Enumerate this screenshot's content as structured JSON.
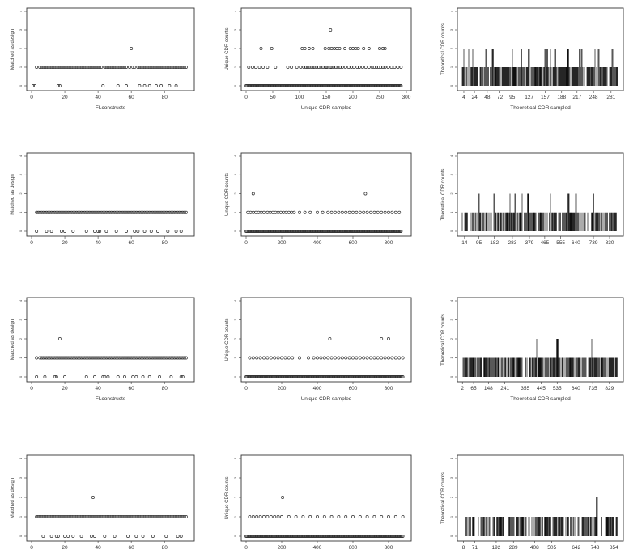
{
  "chart_data": [
    {
      "type": "scatter",
      "row": 0,
      "col": 0,
      "xlabel": "FLconstructs",
      "ylabel": "Matched as design",
      "xlim": [
        0,
        95
      ],
      "ylim": [
        0,
        4
      ],
      "xticks": [
        0,
        20,
        40,
        60,
        80
      ],
      "yticks": [
        0,
        1,
        2,
        3,
        4
      ],
      "series": [
        {
          "y": 1,
          "x": [
            3,
            5,
            6,
            7,
            8,
            9,
            10,
            11,
            12,
            13,
            14,
            15,
            16,
            17,
            18,
            19,
            20,
            21,
            22,
            23,
            24,
            25,
            26,
            27,
            28,
            29,
            30,
            31,
            32,
            33,
            34,
            35,
            36,
            37,
            38,
            39,
            40,
            41,
            42,
            44,
            45,
            46,
            47,
            48,
            49,
            50,
            51,
            52,
            53,
            54,
            55,
            56,
            57,
            59,
            61,
            62,
            64,
            65,
            66,
            67,
            68,
            69,
            70,
            71,
            72,
            73,
            74,
            75,
            76,
            77,
            78,
            79,
            80,
            81,
            82,
            83,
            84,
            85,
            86,
            87,
            88,
            89,
            90,
            91,
            92,
            93
          ]
        },
        {
          "y": 0,
          "x": [
            1,
            2,
            16,
            17,
            43,
            52,
            57,
            65,
            68,
            71,
            75,
            78,
            83,
            87
          ]
        },
        {
          "y": 2,
          "x": [
            60
          ]
        }
      ]
    },
    {
      "type": "scatter",
      "row": 0,
      "col": 1,
      "xlabel": "Unique CDR sampled",
      "ylabel": "Unique CDR counts",
      "xlim": [
        0,
        300
      ],
      "ylim": [
        0,
        4
      ],
      "xticks": [
        0,
        50,
        100,
        150,
        200,
        250,
        300
      ],
      "yticks": [
        0,
        1,
        2,
        3,
        4
      ],
      "series": [
        {
          "y": 0,
          "x_range": [
            0,
            290
          ],
          "dense": true
        },
        {
          "y": 1,
          "x": [
            5,
            12,
            18,
            25,
            32,
            40,
            55,
            78,
            85,
            95,
            102,
            108,
            112,
            115,
            118,
            122,
            125,
            128,
            132,
            136,
            140,
            144,
            148,
            150,
            152,
            158,
            160,
            164,
            168,
            172,
            176,
            180,
            186,
            192,
            197,
            202,
            208,
            212,
            218,
            224,
            230,
            236,
            240,
            244,
            248,
            252,
            256,
            260,
            266,
            272,
            278,
            284,
            290
          ]
        },
        {
          "y": 2,
          "x": [
            28,
            48,
            105,
            110,
            118,
            125,
            148,
            155,
            160,
            165,
            170,
            175,
            185,
            195,
            200,
            205,
            210,
            220,
            230,
            250,
            256,
            260
          ]
        },
        {
          "y": 3,
          "x": [
            158
          ]
        }
      ]
    },
    {
      "type": "bar",
      "row": 0,
      "col": 2,
      "xlabel": "Theoretical CDR sampled",
      "ylabel": "Theoretical CDR counts",
      "xlim": [
        1,
        295
      ],
      "ylim": [
        0,
        4
      ],
      "yticks": [
        0,
        1,
        2,
        3,
        4
      ],
      "xtick_labels": [
        "4",
        "24",
        "48",
        "72",
        "95",
        "127",
        "157",
        "188",
        "217",
        "248",
        "281"
      ],
      "xtick_values": [
        4,
        24,
        48,
        72,
        95,
        127,
        157,
        188,
        217,
        248,
        281
      ],
      "sparse_seed": 11,
      "gap_rate": 0.16,
      "peaks": [
        4,
        7,
        13,
        21,
        32,
        46,
        58,
        74,
        95,
        112,
        127,
        157,
        161,
        166,
        175,
        200,
        221,
        226,
        234,
        252,
        258,
        277,
        284
      ]
    },
    {
      "type": "scatter",
      "row": 1,
      "col": 0,
      "xlabel": "",
      "ylabel": "Matched as design",
      "xlim": [
        0,
        95
      ],
      "ylim": [
        0,
        4
      ],
      "xticks": [
        0,
        20,
        40,
        60,
        80
      ],
      "yticks": [
        0,
        1,
        2,
        3,
        4
      ],
      "series": [
        {
          "y": 1,
          "x": [
            3,
            4,
            5,
            6,
            7,
            8,
            9,
            10,
            11,
            12,
            13,
            14,
            15,
            16,
            17,
            18,
            19,
            20,
            21,
            22,
            23,
            24,
            25,
            26,
            27,
            28,
            29,
            30,
            31,
            32,
            33,
            34,
            35,
            36,
            37,
            38,
            39,
            40,
            41,
            42,
            43,
            44,
            45,
            46,
            47,
            48,
            49,
            50,
            51,
            52,
            53,
            54,
            55,
            56,
            57,
            58,
            59,
            60,
            61,
            62,
            63,
            64,
            65,
            66,
            67,
            68,
            69,
            70,
            71,
            72,
            73,
            74,
            75,
            76,
            77,
            78,
            79,
            80,
            81,
            82,
            83,
            84,
            85,
            86,
            87,
            88,
            89,
            90,
            91,
            92,
            93
          ]
        },
        {
          "y": 0,
          "x": [
            3,
            9,
            12,
            18,
            20,
            25,
            33,
            38,
            40,
            41,
            45,
            51,
            57,
            62,
            64,
            68,
            72,
            76,
            82,
            87,
            90
          ]
        }
      ]
    },
    {
      "type": "scatter",
      "row": 1,
      "col": 1,
      "xlabel": "",
      "ylabel": "Unique CDR counts",
      "xlim": [
        0,
        900
      ],
      "ylim": [
        0,
        4
      ],
      "xticks": [
        0,
        200,
        400,
        600,
        800
      ],
      "yticks": [
        0,
        1,
        2,
        3,
        4
      ],
      "series": [
        {
          "y": 0,
          "x_range": [
            0,
            870
          ],
          "dense": true
        },
        {
          "y": 1,
          "x": [
            10,
            25,
            40,
            55,
            70,
            85,
            100,
            120,
            135,
            150,
            165,
            180,
            195,
            210,
            225,
            240,
            255,
            270,
            300,
            330,
            360,
            400,
            430,
            460,
            480,
            500,
            520,
            540,
            560,
            580,
            600,
            620,
            640,
            660,
            680,
            700,
            720,
            740,
            760,
            780,
            800,
            820,
            840,
            860
          ]
        },
        {
          "y": 2,
          "x": [
            40,
            670
          ]
        }
      ]
    },
    {
      "type": "bar",
      "row": 1,
      "col": 2,
      "xlabel": "",
      "ylabel": "Theoretical CDR counts",
      "xlim": [
        1,
        880
      ],
      "ylim": [
        0,
        4
      ],
      "yticks": [
        0,
        1,
        2,
        3,
        4
      ],
      "xtick_labels": [
        "14",
        "95",
        "182",
        "283",
        "379",
        "465",
        "555",
        "640",
        "739",
        "830"
      ],
      "xtick_values": [
        14,
        95,
        182,
        283,
        379,
        465,
        555,
        640,
        739,
        830
      ],
      "sparse_seed": 23,
      "gap_rate": 0.28,
      "peaks": [
        95,
        182,
        270,
        300,
        340,
        372,
        420,
        465,
        500,
        560,
        600,
        640,
        740,
        780
      ]
    },
    {
      "type": "scatter",
      "row": 2,
      "col": 0,
      "xlabel": "FLconstructs",
      "ylabel": "Matched as design",
      "xlim": [
        0,
        95
      ],
      "ylim": [
        0,
        4
      ],
      "xticks": [
        0,
        20,
        40,
        60,
        80
      ],
      "yticks": [
        0,
        1,
        2,
        3,
        4
      ],
      "series": [
        {
          "y": 1,
          "x": [
            3,
            5,
            6,
            7,
            8,
            9,
            10,
            11,
            12,
            13,
            14,
            15,
            16,
            17,
            18,
            19,
            20,
            21,
            22,
            23,
            24,
            25,
            26,
            27,
            28,
            29,
            30,
            31,
            32,
            33,
            34,
            35,
            36,
            37,
            38,
            39,
            40,
            41,
            42,
            43,
            44,
            45,
            46,
            47,
            48,
            49,
            50,
            51,
            52,
            53,
            54,
            55,
            56,
            57,
            58,
            59,
            60,
            61,
            62,
            63,
            64,
            65,
            66,
            67,
            68,
            69,
            70,
            71,
            72,
            73,
            74,
            75,
            76,
            77,
            78,
            79,
            80,
            81,
            82,
            83,
            84,
            85,
            86,
            87,
            88,
            89,
            90,
            91,
            92,
            93
          ]
        },
        {
          "y": 0,
          "x": [
            3,
            8,
            14,
            15,
            20,
            33,
            38,
            43,
            44,
            46,
            52,
            56,
            61,
            63,
            67,
            71,
            77,
            84,
            90,
            91
          ]
        },
        {
          "y": 2,
          "x": [
            17
          ]
        }
      ]
    },
    {
      "type": "scatter",
      "row": 2,
      "col": 1,
      "xlabel": "Unique CDR sampled",
      "ylabel": "Unique CDR counts",
      "xlim": [
        0,
        900
      ],
      "ylim": [
        0,
        4
      ],
      "xticks": [
        0,
        200,
        400,
        600,
        800
      ],
      "yticks": [
        0,
        1,
        2,
        3,
        4
      ],
      "series": [
        {
          "y": 0,
          "x_range": [
            0,
            880
          ],
          "dense": true
        },
        {
          "y": 1,
          "x": [
            20,
            40,
            60,
            80,
            100,
            120,
            140,
            160,
            180,
            200,
            220,
            240,
            260,
            300,
            350,
            380,
            400,
            420,
            440,
            460,
            480,
            500,
            520,
            540,
            560,
            580,
            600,
            620,
            640,
            660,
            680,
            700,
            720,
            740,
            760,
            780,
            800,
            820,
            840,
            860,
            880
          ]
        },
        {
          "y": 2,
          "x": [
            470,
            760,
            800
          ]
        }
      ]
    },
    {
      "type": "bar",
      "row": 2,
      "col": 2,
      "xlabel": "Theoretical CDR sampled",
      "ylabel": "Theoretical CDR counts",
      "xlim": [
        1,
        880
      ],
      "ylim": [
        0,
        4
      ],
      "yticks": [
        0,
        1,
        2,
        3,
        4
      ],
      "xtick_labels": [
        "2",
        "65",
        "148",
        "241",
        "355",
        "445",
        "535",
        "640",
        "735",
        "829"
      ],
      "xtick_values": [
        2,
        65,
        148,
        241,
        355,
        445,
        535,
        640,
        735,
        829
      ],
      "sparse_seed": 37,
      "gap_rate": 0.24,
      "peaks": [
        420,
        465,
        535,
        730
      ]
    },
    {
      "type": "scatter",
      "row": 3,
      "col": 0,
      "xlabel": "",
      "ylabel": "Matched as design",
      "xlim": [
        0,
        95
      ],
      "ylim": [
        0,
        4
      ],
      "xticks": [
        0,
        20,
        40,
        60,
        80
      ],
      "yticks": [
        0,
        1,
        2,
        3,
        4
      ],
      "series": [
        {
          "y": 1,
          "x": [
            3,
            4,
            5,
            6,
            7,
            8,
            9,
            10,
            11,
            12,
            13,
            14,
            15,
            16,
            17,
            18,
            19,
            20,
            21,
            22,
            23,
            24,
            25,
            26,
            27,
            28,
            29,
            30,
            31,
            32,
            33,
            34,
            35,
            36,
            37,
            38,
            39,
            40,
            41,
            42,
            43,
            44,
            45,
            46,
            47,
            48,
            49,
            50,
            51,
            52,
            53,
            54,
            55,
            56,
            57,
            58,
            59,
            60,
            61,
            62,
            63,
            64,
            65,
            66,
            67,
            68,
            69,
            70,
            71,
            72,
            73,
            74,
            75,
            76,
            77,
            78,
            79,
            80,
            81,
            82,
            83,
            84,
            85,
            86,
            87,
            88,
            89,
            90,
            91,
            92,
            93
          ]
        },
        {
          "y": 0,
          "x": [
            7,
            12,
            15,
            16,
            20,
            22,
            25,
            30,
            36,
            38,
            44,
            50,
            58,
            63,
            67,
            73,
            81,
            88,
            90
          ]
        },
        {
          "y": 2,
          "x": [
            37
          ]
        }
      ]
    },
    {
      "type": "scatter",
      "row": 3,
      "col": 1,
      "xlabel": "",
      "ylabel": "Unique CDR counts",
      "xlim": [
        0,
        900
      ],
      "ylim": [
        0,
        4
      ],
      "xticks": [
        0,
        200,
        400,
        600,
        800
      ],
      "yticks": [
        0,
        1,
        2,
        3,
        4
      ],
      "series": [
        {
          "y": 0,
          "x_range": [
            0,
            880
          ],
          "dense": true
        },
        {
          "y": 1,
          "x": [
            20,
            40,
            60,
            80,
            100,
            120,
            140,
            160,
            180,
            200,
            240,
            280,
            320,
            360,
            400,
            440,
            480,
            520,
            560,
            600,
            640,
            680,
            720,
            760,
            800,
            840,
            880
          ]
        },
        {
          "y": 2,
          "x": [
            205
          ]
        }
      ]
    },
    {
      "type": "bar",
      "row": 3,
      "col": 2,
      "xlabel": "",
      "ylabel": "Theoretical CDR counts",
      "xlim": [
        1,
        880
      ],
      "ylim": [
        0,
        4
      ],
      "yticks": [
        0,
        1,
        2,
        3,
        4
      ],
      "xtick_labels": [
        "8",
        "71",
        "192",
        "289",
        "408",
        "505",
        "642",
        "748",
        "854"
      ],
      "xtick_values": [
        8,
        71,
        192,
        289,
        408,
        505,
        642,
        748,
        854
      ],
      "sparse_seed": 51,
      "gap_rate": 0.34,
      "peaks": [
        192,
        505,
        760
      ]
    }
  ]
}
